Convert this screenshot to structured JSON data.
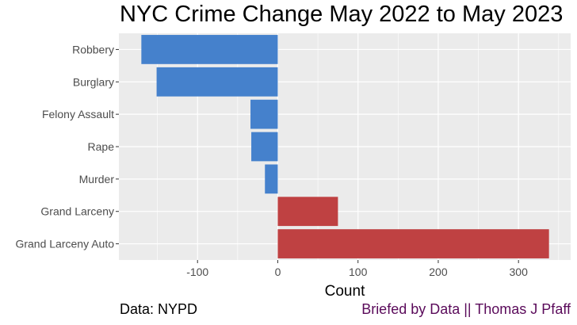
{
  "chart_data": {
    "type": "bar",
    "orientation": "horizontal",
    "title": "NYC Crime Change May 2022 to May 2023",
    "xlabel": "Count",
    "ylabel": "",
    "categories": [
      "Robbery",
      "Burglary",
      "Felony Assault",
      "Rape",
      "Murder",
      "Grand Larceny",
      "Grand Larceny Auto"
    ],
    "values": [
      -170,
      -151,
      -34,
      -33,
      -16,
      75,
      338
    ],
    "xlim": [
      -198,
      365
    ],
    "xticks": [
      -100,
      0,
      100,
      200,
      300
    ],
    "xtick_labels": [
      "-100",
      "0",
      "100",
      "200",
      "300"
    ],
    "grid": true,
    "colors": {
      "negative": "#4581cc",
      "positive": "#bf4142",
      "panel_background": "#ebebeb",
      "grid": "#ffffff"
    }
  },
  "captions": {
    "left": "Data: NYPD",
    "right": "Briefed by Data || Thomas J Pfaff",
    "right_color": "#5a0a5a"
  }
}
